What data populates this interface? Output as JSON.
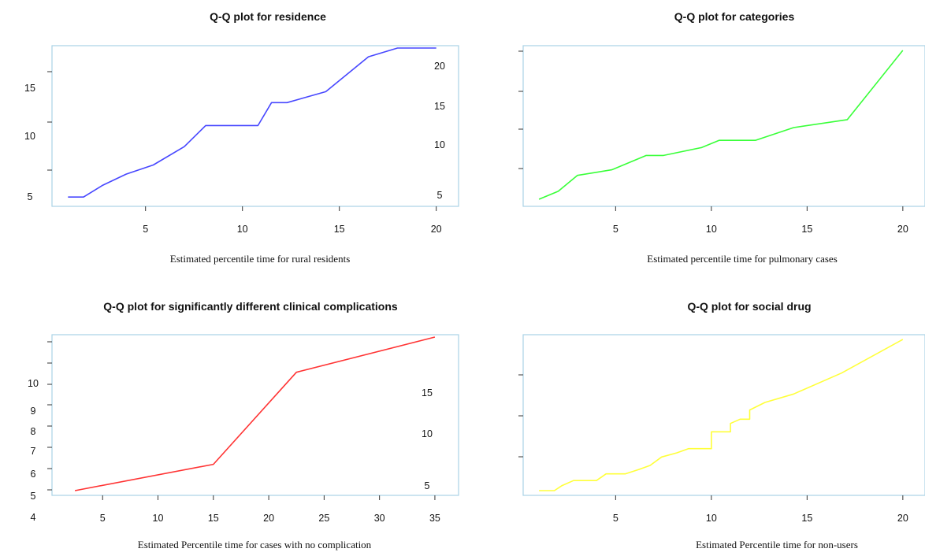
{
  "chart_data": [
    {
      "type": "line",
      "title": "Q-Q plot for residence",
      "xlabel": "Estimated percentile time for rural residents",
      "ylabel": "",
      "xlim": [
        0.5,
        20.5
      ],
      "ylim": [
        4,
        20.5
      ],
      "x_ticks": [
        5,
        10,
        15,
        20
      ],
      "left_tick_labels": [
        "15",
        "10",
        "5"
      ],
      "right_tick_labels": [
        "20",
        "15",
        "10",
        "5"
      ],
      "color": "#4747ff",
      "x": [
        1,
        1.8,
        2.8,
        4,
        5.4,
        7,
        8.1,
        9,
        10,
        10.8,
        11.5,
        12.3,
        14.3,
        16.5,
        18,
        20
      ],
      "y": [
        4.5,
        4.5,
        5.8,
        7,
        8,
        10,
        12.3,
        12.3,
        12.3,
        12.3,
        14.8,
        14.8,
        16,
        19.8,
        21,
        22.5
      ]
    },
    {
      "type": "line",
      "title": "Q-Q plot for categories",
      "xlabel": "Estimated percentile time for pulmonary cases",
      "ylabel": "",
      "xlim": [
        0.5,
        20.5
      ],
      "ylim": [
        4,
        23
      ],
      "x_ticks": [
        5,
        10,
        15,
        20
      ],
      "color": "#39ff39",
      "x": [
        1,
        2,
        3,
        4.8,
        6.6,
        7.5,
        9.5,
        10.4,
        12.3,
        14.3,
        17.1,
        20
      ],
      "y": [
        4.3,
        5.3,
        7.3,
        8,
        9.8,
        9.8,
        10.8,
        11.7,
        11.7,
        13.3,
        14.3,
        23
      ]
    },
    {
      "type": "line",
      "title": "Q-Q plot for significantly different clinical complications",
      "xlabel": "Estimated Percentile time for cases with no complication",
      "ylabel": "",
      "xlim": [
        1,
        36
      ],
      "ylim": [
        4,
        15.5
      ],
      "x_ticks": [
        5,
        10,
        15,
        20,
        25,
        30,
        35
      ],
      "left_tick_labels": [
        "10",
        "9",
        "8",
        "7",
        "6",
        "5",
        "4"
      ],
      "right_tick_labels": [
        "15",
        "10",
        "5"
      ],
      "color": "#ff3333",
      "x": [
        2.5,
        15,
        22.5,
        35
      ],
      "y": [
        4,
        6,
        13,
        18.5
      ]
    },
    {
      "type": "line",
      "title": "Q-Q plot for social drug",
      "xlabel": "Estimated Percentile time for non-users",
      "ylabel": "",
      "xlim": [
        0.5,
        20.5
      ],
      "ylim": [
        4,
        22
      ],
      "x_ticks": [
        5,
        10,
        15,
        20
      ],
      "color": "#ffff3a",
      "x": [
        1,
        1.8,
        2.2,
        2.8,
        3.5,
        4,
        4.5,
        5,
        5.5,
        6.2,
        6.8,
        7.4,
        8.2,
        8.8,
        9.5,
        10,
        10,
        10.5,
        11,
        11,
        11.5,
        12,
        12,
        12.8,
        14.3,
        16.8,
        20
      ],
      "y": [
        4,
        4,
        4.6,
        5.2,
        5.2,
        5.2,
        6,
        6,
        6,
        6.5,
        7,
        8,
        8.5,
        9,
        9,
        9,
        11,
        11,
        11,
        12,
        12.5,
        12.5,
        13.6,
        14.5,
        15.5,
        18,
        22
      ]
    }
  ]
}
